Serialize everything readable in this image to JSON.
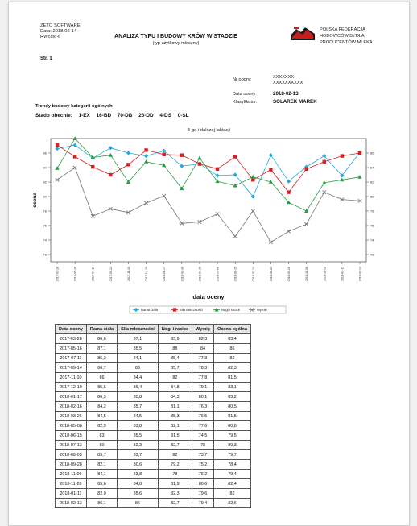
{
  "header": {
    "company": "ZETO SOFTWARE",
    "date_line": "Data: 2018-02-14",
    "code": "RWccto-6",
    "title": "ANALIZA TYPU I BUDOWY KRÓW W STADZIE",
    "subtitle": "(typ użytkowy mleczny)",
    "org_lines": [
      "POLSKA FEDERACJA",
      "HODOWCÓW BYDŁA",
      "PRODUCENTÓW MLEKA"
    ],
    "page_label": "Str. 1"
  },
  "info": {
    "herd_label": "Nr obory:",
    "herd_values": [
      "XXXXXXX",
      "XXXXXXXXXX"
    ],
    "date_label": "Data oceny:",
    "date_value": "2018-02-13",
    "classifier_label": "Klasyfikator:",
    "classifier_value": "SOLAREK MAREK"
  },
  "trends": {
    "title": "Trendy budowy kategorii ogólnych",
    "state_label": "Stado obecnie:",
    "items": [
      "1-EX",
      "16-BD",
      "70-DB",
      "26-DD",
      "4-DS",
      "0-SL"
    ]
  },
  "colors": {
    "rama": "#2aa7d6",
    "sila": "#d42121",
    "nogi": "#2e9b47",
    "wymie": "#777777",
    "logo_red": "#c41e1e"
  },
  "chart_data": {
    "type": "line",
    "title": "3-go i dalszej laktacji",
    "xlabel": "data oceny",
    "ylabel": "ocena",
    "ylim": [
      71,
      88
    ],
    "yticks": [
      72,
      74,
      76,
      78,
      80,
      82,
      84,
      86
    ],
    "categories": [
      "2017-03-28",
      "2017-05-16",
      "2017-07-11",
      "2017-09-14",
      "2017-11-10",
      "2017-12-19",
      "2018-01-17",
      "2018-02-16",
      "2018-03-26",
      "2018-05-08",
      "2018-06-15",
      "2018-07-13",
      "2018-08-03",
      "2018-09-28",
      "2018-11-06",
      "2018-11-26",
      "2018-01-11",
      "2018-02-13"
    ],
    "series": [
      {
        "name": "Rama ciała",
        "marker": "diamond",
        "values": [
          86.6,
          87.1,
          85.3,
          86.7,
          86,
          85.6,
          86.3,
          84.2,
          84.5,
          82.9,
          83,
          80,
          85.7,
          82.1,
          84.1,
          85.6,
          82.9,
          86.1
        ]
      },
      {
        "name": "Siła mleczności",
        "marker": "square",
        "values": [
          87.1,
          85.5,
          84.1,
          83,
          84.4,
          86.4,
          85.8,
          85.7,
          84.5,
          83.8,
          85.5,
          82.3,
          83.7,
          80.6,
          83.8,
          84.8,
          85.6,
          86
        ]
      },
      {
        "name": "Nogi i racice",
        "marker": "triangle",
        "values": [
          83.9,
          88,
          85.4,
          85.7,
          82,
          84.8,
          84.3,
          81.1,
          85.3,
          82.1,
          81.5,
          82.7,
          82,
          79.2,
          78,
          81.9,
          82.3,
          82.7
        ]
      },
      {
        "name": "Wymię",
        "marker": "x",
        "values": [
          82.3,
          84,
          77.3,
          78.3,
          77.8,
          79.1,
          80.1,
          76.3,
          76.5,
          77.6,
          74.5,
          78,
          73.7,
          75.2,
          76.2,
          80.6,
          79.6,
          79.4
        ]
      }
    ]
  },
  "table": {
    "headers": [
      "Data oceny",
      "Rama ciała",
      "Siła mleczności",
      "Nogi i racice",
      "Wymię",
      "Ocena ogólna"
    ],
    "rows": [
      [
        "2017-03-28",
        "86,6",
        "87,1",
        "83,9",
        "82,3",
        "83,4"
      ],
      [
        "2017-05-16",
        "87,1",
        "85,5",
        "88",
        "84",
        "86"
      ],
      [
        "2017-07-11",
        "85,3",
        "84,1",
        "85,4",
        "77,3",
        "82"
      ],
      [
        "2017-09-14",
        "86,7",
        "83",
        "85,7",
        "78,3",
        "82,3"
      ],
      [
        "2017-11-10",
        "86",
        "84,4",
        "82",
        "77,8",
        "81,5"
      ],
      [
        "2017-12-19",
        "85,6",
        "86,4",
        "84,8",
        "79,1",
        "83,1"
      ],
      [
        "2018-01-17",
        "86,3",
        "85,8",
        "84,3",
        "80,1",
        "83,2"
      ],
      [
        "2018-02-16",
        "84,2",
        "85,7",
        "81,1",
        "76,3",
        "80,5"
      ],
      [
        "2018-03-26",
        "84,5",
        "84,5",
        "85,3",
        "76,5",
        "81,5"
      ],
      [
        "2018-05-08",
        "82,9",
        "83,8",
        "82,1",
        "77,6",
        "80,8"
      ],
      [
        "2018-06-15",
        "83",
        "85,5",
        "81,5",
        "74,5",
        "79,5"
      ],
      [
        "2018-07-13",
        "80",
        "82,3",
        "82,7",
        "78",
        "80,3"
      ],
      [
        "2018-08-03",
        "85,7",
        "83,7",
        "82",
        "73,7",
        "79,7"
      ],
      [
        "2018-09-28",
        "82,1",
        "80,6",
        "79,2",
        "75,2",
        "78,4"
      ],
      [
        "2018-11-06",
        "84,1",
        "83,8",
        "78",
        "76,2",
        "79,4"
      ],
      [
        "2018-11-26",
        "85,6",
        "84,8",
        "81,9",
        "80,6",
        "82,4"
      ],
      [
        "2018-01-11",
        "82,9",
        "85,6",
        "82,3",
        "79,6",
        "82"
      ],
      [
        "2018-02-13",
        "86,1",
        "86",
        "82,7",
        "79,4",
        "82,6"
      ]
    ]
  }
}
